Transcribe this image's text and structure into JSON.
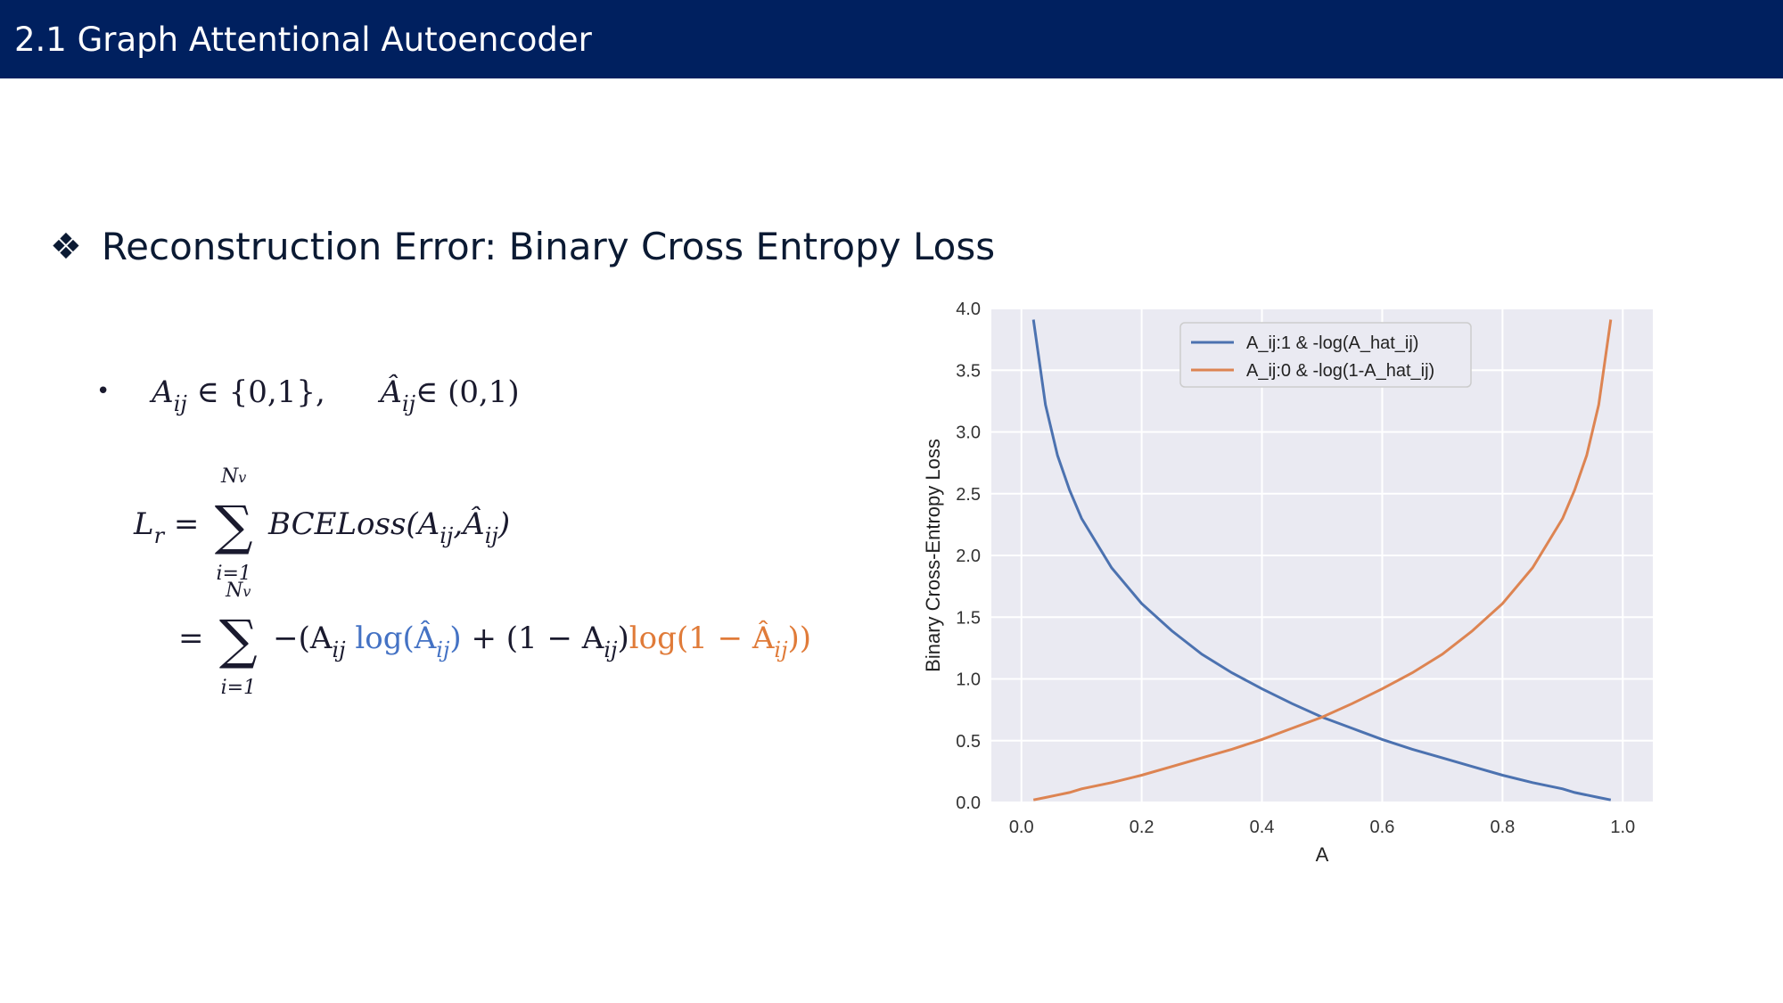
{
  "header": {
    "title": "2.1 Graph Attentional Autoencoder"
  },
  "section": {
    "marker": "❖",
    "heading": "Reconstruction Error: Binary Cross Entropy Loss"
  },
  "math": {
    "bullet": "•",
    "line1_a": "A",
    "line1_a_sub": "ij",
    "line1_in1": " ∈ {0,1},",
    "line1_b": "Â",
    "line1_b_sub": "ij",
    "line1_in2": "∈ (0,1)",
    "eq1_lhs": "L",
    "eq1_lhs_sub": "r",
    "eq_equals": "=",
    "sum_symbol": "∑",
    "sum_upper": "N",
    "sum_upper_sub": "v",
    "sum_lower": "i=1",
    "eq1_rhs": "BCELoss(A",
    "eq1_rhs_sub1": "ij",
    "eq1_rhs_mid": ",Â",
    "eq1_rhs_sub2": "ij",
    "eq1_rhs_end": ")",
    "eq2_part1": "−(A",
    "eq2_part1_sub": "ij",
    "eq2_log1": " log(Â",
    "eq2_log1_sub": "ij",
    "eq2_log1_end": ")",
    "eq2_mid": " + (1 − A",
    "eq2_mid_sub": "ij",
    "eq2_mid_end": ")",
    "eq2_log2": "log(1 − Â",
    "eq2_log2_sub": "ij",
    "eq2_log2_end": "))"
  },
  "chart_data": {
    "type": "line",
    "xlabel": "A",
    "ylabel": "Binary Cross-Entropy Loss",
    "xlim": [
      -0.05,
      1.05
    ],
    "ylim": [
      0.0,
      4.0
    ],
    "xticks": [
      "0.0",
      "0.2",
      "0.4",
      "0.6",
      "0.8",
      "1.0"
    ],
    "yticks": [
      "0.0",
      "0.5",
      "1.0",
      "1.5",
      "2.0",
      "2.5",
      "3.0",
      "3.5",
      "4.0"
    ],
    "grid": true,
    "legend_position": "top-center",
    "background": "#eaeaf2",
    "x": [
      0.02,
      0.04,
      0.06,
      0.08,
      0.1,
      0.15,
      0.2,
      0.25,
      0.3,
      0.35,
      0.4,
      0.45,
      0.5,
      0.55,
      0.6,
      0.65,
      0.7,
      0.75,
      0.8,
      0.85,
      0.9,
      0.92,
      0.94,
      0.96,
      0.98
    ],
    "series": [
      {
        "name": "A_ij:1 & -log(A_hat_ij)",
        "color": "#4c72b0",
        "values": [
          3.91,
          3.22,
          2.81,
          2.53,
          2.3,
          1.9,
          1.61,
          1.39,
          1.2,
          1.05,
          0.92,
          0.8,
          0.69,
          0.6,
          0.51,
          0.43,
          0.36,
          0.29,
          0.22,
          0.16,
          0.11,
          0.08,
          0.06,
          0.04,
          0.02
        ]
      },
      {
        "name": "A_ij:0 & -log(1-A_hat_ij)",
        "color": "#dd8452",
        "values": [
          0.02,
          0.04,
          0.06,
          0.08,
          0.11,
          0.16,
          0.22,
          0.29,
          0.36,
          0.43,
          0.51,
          0.6,
          0.69,
          0.8,
          0.92,
          1.05,
          1.2,
          1.39,
          1.61,
          1.9,
          2.3,
          2.53,
          2.81,
          3.22,
          3.91
        ]
      }
    ]
  }
}
